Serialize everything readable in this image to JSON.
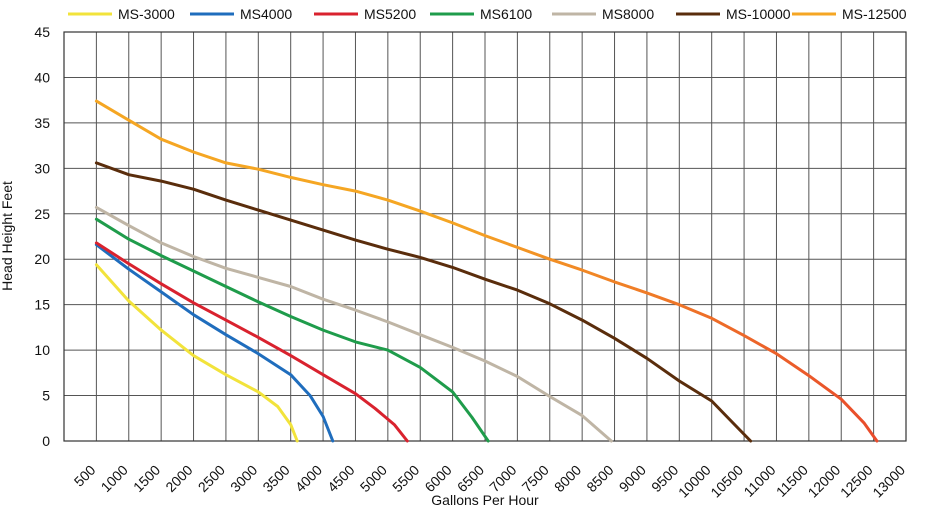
{
  "chart_data": {
    "type": "line",
    "title": "",
    "xlabel": "Gallons Per Hour",
    "ylabel": "Head Height Feet",
    "xlim": [
      0,
      13000
    ],
    "ylim": [
      0,
      45
    ],
    "grid": true,
    "legend_position": "top",
    "x_ticks": [
      "500",
      "1000",
      "1500",
      "2000",
      "2500",
      "3000",
      "3500",
      "4000",
      "4500",
      "5000",
      "5500",
      "6000",
      "6500",
      "7000",
      "7500",
      "8000",
      "8500",
      "9000",
      "9500",
      "10000",
      "10500",
      "11000",
      "11500",
      "12000",
      "12500",
      "13000"
    ],
    "y_ticks": [
      "0",
      "5",
      "10",
      "15",
      "20",
      "25",
      "30",
      "35",
      "40",
      "45"
    ],
    "series": [
      {
        "name": "MS-3000",
        "color": "#f2e33b",
        "points": [
          [
            500,
            19.4
          ],
          [
            1000,
            15.4
          ],
          [
            1500,
            12.2
          ],
          [
            2000,
            9.4
          ],
          [
            2500,
            7.3
          ],
          [
            3000,
            5.4
          ],
          [
            3300,
            3.8
          ],
          [
            3500,
            1.8
          ],
          [
            3600,
            0
          ]
        ]
      },
      {
        "name": "MS4000",
        "color": "#1f6dbd",
        "points": [
          [
            500,
            21.6
          ],
          [
            1000,
            18.9
          ],
          [
            1500,
            16.4
          ],
          [
            2000,
            13.9
          ],
          [
            2500,
            11.7
          ],
          [
            3000,
            9.6
          ],
          [
            3500,
            7.3
          ],
          [
            3800,
            5.0
          ],
          [
            4000,
            2.7
          ],
          [
            4150,
            0
          ]
        ]
      },
      {
        "name": "MS5200",
        "color": "#d9222e",
        "points": [
          [
            500,
            21.8
          ],
          [
            1000,
            19.5
          ],
          [
            1500,
            17.3
          ],
          [
            2000,
            15.2
          ],
          [
            2500,
            13.3
          ],
          [
            3000,
            11.4
          ],
          [
            3500,
            9.4
          ],
          [
            4000,
            7.3
          ],
          [
            4500,
            5.2
          ],
          [
            4800,
            3.6
          ],
          [
            5100,
            1.8
          ],
          [
            5300,
            0
          ]
        ]
      },
      {
        "name": "MS6100",
        "color": "#1f9c4b",
        "points": [
          [
            500,
            24.4
          ],
          [
            1000,
            22.2
          ],
          [
            1500,
            20.4
          ],
          [
            2000,
            18.7
          ],
          [
            2500,
            17.0
          ],
          [
            3000,
            15.3
          ],
          [
            3500,
            13.7
          ],
          [
            4000,
            12.2
          ],
          [
            4500,
            10.9
          ],
          [
            5000,
            10.0
          ],
          [
            5500,
            8.1
          ],
          [
            6000,
            5.4
          ],
          [
            6300,
            2.6
          ],
          [
            6550,
            0
          ]
        ]
      },
      {
        "name": "MS8000",
        "color": "#bfb5a5",
        "points": [
          [
            500,
            25.7
          ],
          [
            1000,
            23.7
          ],
          [
            1500,
            21.8
          ],
          [
            2000,
            20.3
          ],
          [
            2500,
            19.0
          ],
          [
            3000,
            18.0
          ],
          [
            3500,
            17.0
          ],
          [
            4000,
            15.6
          ],
          [
            4500,
            14.4
          ],
          [
            5000,
            13.1
          ],
          [
            5500,
            11.7
          ],
          [
            6000,
            10.3
          ],
          [
            6500,
            8.8
          ],
          [
            7000,
            7.1
          ],
          [
            7500,
            4.9
          ],
          [
            8000,
            2.8
          ],
          [
            8450,
            0
          ]
        ]
      },
      {
        "name": "MS-10000",
        "color": "#5a2d0c",
        "points": [
          [
            500,
            30.6
          ],
          [
            1000,
            29.3
          ],
          [
            1500,
            28.6
          ],
          [
            2000,
            27.7
          ],
          [
            2500,
            26.5
          ],
          [
            3000,
            25.4
          ],
          [
            3500,
            24.3
          ],
          [
            4000,
            23.2
          ],
          [
            4500,
            22.1
          ],
          [
            5000,
            21.1
          ],
          [
            5500,
            20.2
          ],
          [
            6000,
            19.1
          ],
          [
            6500,
            17.8
          ],
          [
            7000,
            16.6
          ],
          [
            7500,
            15.1
          ],
          [
            8000,
            13.3
          ],
          [
            8500,
            11.3
          ],
          [
            9000,
            9.1
          ],
          [
            9500,
            6.6
          ],
          [
            10000,
            4.4
          ],
          [
            10300,
            2.2
          ],
          [
            10600,
            0
          ]
        ]
      },
      {
        "name": "MS-12500",
        "color": "#f5a623",
        "color_end": "#e8452c",
        "points": [
          [
            500,
            37.4
          ],
          [
            1000,
            35.3
          ],
          [
            1500,
            33.2
          ],
          [
            2000,
            31.8
          ],
          [
            2500,
            30.6
          ],
          [
            3000,
            29.9
          ],
          [
            3500,
            29.0
          ],
          [
            4000,
            28.2
          ],
          [
            4500,
            27.5
          ],
          [
            5000,
            26.5
          ],
          [
            5500,
            25.3
          ],
          [
            6000,
            24.0
          ],
          [
            6500,
            22.6
          ],
          [
            7000,
            21.3
          ],
          [
            7500,
            20.0
          ],
          [
            8000,
            18.8
          ],
          [
            8500,
            17.5
          ],
          [
            9000,
            16.3
          ],
          [
            9500,
            15.0
          ],
          [
            10000,
            13.5
          ],
          [
            10500,
            11.6
          ],
          [
            11000,
            9.6
          ],
          [
            11500,
            7.2
          ],
          [
            12000,
            4.6
          ],
          [
            12350,
            2.0
          ],
          [
            12550,
            0
          ]
        ]
      }
    ]
  }
}
